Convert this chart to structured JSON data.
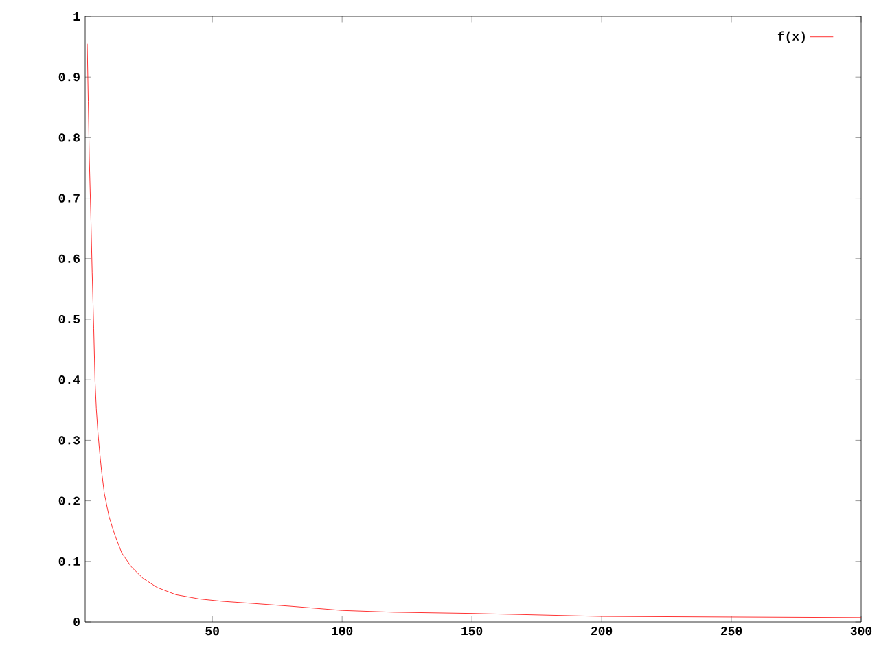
{
  "chart_data": {
    "type": "line",
    "xlim": [
      1,
      300
    ],
    "ylim": [
      0,
      1
    ],
    "xticks": [
      50,
      100,
      150,
      200,
      250,
      300
    ],
    "yticks": [
      0,
      0.1,
      0.2,
      0.3,
      0.4,
      0.5,
      0.6,
      0.7,
      0.8,
      0.9,
      1
    ],
    "legend": "top right",
    "grid": false,
    "series": [
      {
        "name": "f(x)",
        "color": "#ff0000",
        "x": [
          1.8,
          2.2,
          2.6,
          3.2,
          3.7,
          4.3,
          4.8,
          5.3,
          5.9,
          6.6,
          7.3,
          8.4,
          10.2,
          12.4,
          15.1,
          18.8,
          23.3,
          28.7,
          36,
          45,
          54,
          64,
          80,
          100,
          120,
          150,
          200,
          250,
          300
        ],
        "values": [
          0.955,
          0.86,
          0.765,
          0.67,
          0.578,
          0.485,
          0.398,
          0.352,
          0.314,
          0.28,
          0.25,
          0.212,
          0.174,
          0.144,
          0.114,
          0.091,
          0.072,
          0.057,
          0.045,
          0.038,
          0.034,
          0.031,
          0.026,
          0.019,
          0.016,
          0.014,
          0.009,
          0.008,
          0.007
        ]
      }
    ]
  }
}
